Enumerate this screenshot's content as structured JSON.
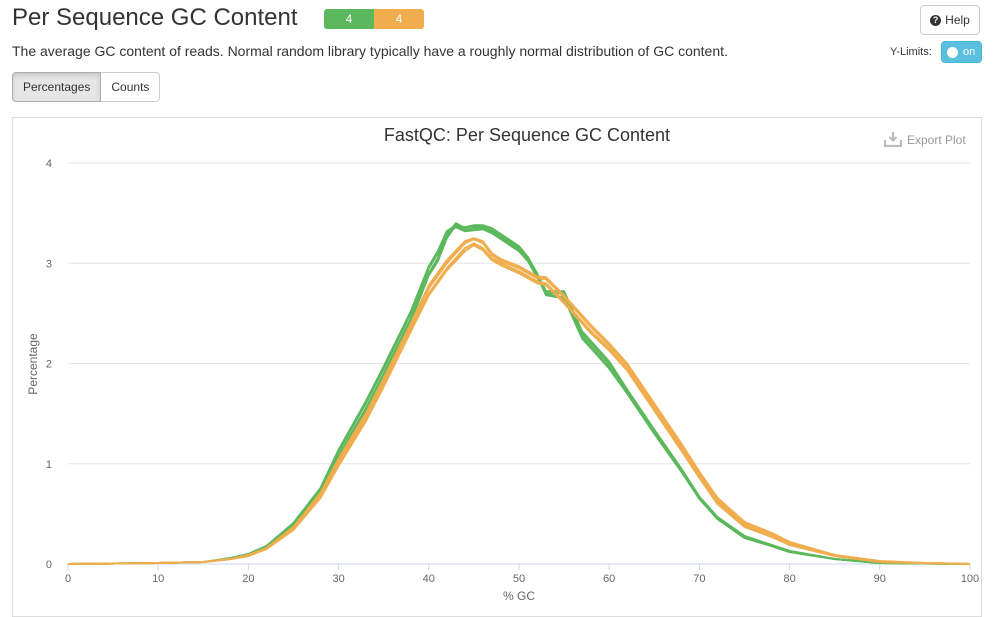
{
  "header": {
    "title": "Per Sequence GC Content",
    "badges": [
      {
        "label": "4",
        "status": "pass",
        "color": "#5cb85c"
      },
      {
        "label": "4",
        "status": "warn",
        "color": "#f0ad4e"
      }
    ],
    "help_label": "Help",
    "description": "The average GC content of reads. Normal random library typically have a roughly normal distribution of GC content."
  },
  "controls": {
    "ylimits_label": "Y-Limits:",
    "ylimits_state": "on",
    "tabs": [
      {
        "label": "Percentages",
        "active": true
      },
      {
        "label": "Counts",
        "active": false
      }
    ],
    "export_label": "Export Plot"
  },
  "chart_data": {
    "type": "line",
    "title": "FastQC: Per Sequence GC Content",
    "xlabel": "% GC",
    "ylabel": "Percentage",
    "xlim": [
      0,
      100
    ],
    "ylim": [
      0,
      4
    ],
    "xticks": [
      0,
      10,
      20,
      30,
      40,
      50,
      60,
      70,
      80,
      90,
      100
    ],
    "yticks": [
      0,
      1,
      2,
      3,
      4
    ],
    "grid": true,
    "series": [
      {
        "color": "#5cb85c",
        "x": [
          0,
          10,
          15,
          18,
          20,
          22,
          25,
          28,
          30,
          33,
          35,
          38,
          40,
          41,
          42,
          43,
          44,
          45,
          46,
          47,
          48,
          50,
          51,
          52,
          53,
          55,
          57,
          58,
          60,
          62,
          65,
          68,
          70,
          72,
          75,
          78,
          80,
          85,
          90,
          95,
          100
        ],
        "y": [
          0,
          0.01,
          0.02,
          0.05,
          0.09,
          0.17,
          0.38,
          0.72,
          1.08,
          1.55,
          1.9,
          2.45,
          2.9,
          3.05,
          3.28,
          3.4,
          3.35,
          3.37,
          3.37,
          3.34,
          3.28,
          3.15,
          3.05,
          2.88,
          2.68,
          2.65,
          2.25,
          2.15,
          1.95,
          1.7,
          1.3,
          0.92,
          0.65,
          0.45,
          0.26,
          0.18,
          0.12,
          0.05,
          0.01,
          0.005,
          0
        ]
      },
      {
        "color": "#5cb85c",
        "x": [
          0,
          10,
          15,
          18,
          20,
          22,
          25,
          28,
          30,
          33,
          35,
          38,
          40,
          41,
          42,
          43,
          44,
          45,
          46,
          47,
          48,
          50,
          51,
          52,
          53,
          55,
          57,
          58,
          60,
          62,
          65,
          68,
          70,
          72,
          75,
          78,
          80,
          85,
          90,
          95,
          100
        ],
        "y": [
          0,
          0.01,
          0.02,
          0.05,
          0.1,
          0.18,
          0.4,
          0.75,
          1.12,
          1.6,
          1.95,
          2.5,
          2.95,
          3.1,
          3.3,
          3.36,
          3.32,
          3.33,
          3.34,
          3.3,
          3.24,
          3.12,
          3.02,
          2.86,
          2.7,
          2.7,
          2.3,
          2.2,
          2.0,
          1.72,
          1.32,
          0.94,
          0.66,
          0.46,
          0.27,
          0.19,
          0.13,
          0.05,
          0.01,
          0.005,
          0
        ]
      },
      {
        "color": "#5cb85c",
        "x": [
          0,
          10,
          15,
          18,
          20,
          22,
          25,
          28,
          30,
          33,
          35,
          38,
          40,
          41,
          42,
          43,
          44,
          45,
          46,
          47,
          48,
          50,
          51,
          52,
          53,
          55,
          57,
          58,
          60,
          62,
          65,
          68,
          70,
          72,
          75,
          78,
          80,
          85,
          90,
          95,
          100
        ],
        "y": [
          0,
          0.01,
          0.02,
          0.05,
          0.09,
          0.16,
          0.37,
          0.7,
          1.05,
          1.52,
          1.87,
          2.42,
          2.88,
          3.02,
          3.25,
          3.38,
          3.33,
          3.35,
          3.36,
          3.32,
          3.26,
          3.14,
          3.04,
          2.87,
          2.69,
          2.66,
          2.27,
          2.17,
          1.97,
          1.71,
          1.31,
          0.93,
          0.65,
          0.45,
          0.26,
          0.18,
          0.12,
          0.05,
          0.01,
          0.005,
          0
        ]
      },
      {
        "color": "#5cb85c",
        "x": [
          0,
          10,
          15,
          18,
          20,
          22,
          25,
          28,
          30,
          33,
          35,
          38,
          40,
          41,
          42,
          43,
          44,
          45,
          46,
          47,
          48,
          50,
          51,
          52,
          53,
          55,
          57,
          58,
          60,
          62,
          65,
          68,
          70,
          72,
          75,
          78,
          80,
          85,
          90,
          95,
          100
        ],
        "y": [
          0,
          0.01,
          0.02,
          0.06,
          0.1,
          0.18,
          0.41,
          0.76,
          1.14,
          1.62,
          1.97,
          2.52,
          2.97,
          3.12,
          3.32,
          3.38,
          3.36,
          3.38,
          3.38,
          3.35,
          3.29,
          3.17,
          3.06,
          2.9,
          2.72,
          2.72,
          2.32,
          2.22,
          2.02,
          1.74,
          1.34,
          0.95,
          0.67,
          0.47,
          0.28,
          0.19,
          0.13,
          0.05,
          0.01,
          0.005,
          0
        ]
      },
      {
        "color": "#f0ad4e",
        "x": [
          0,
          10,
          15,
          18,
          20,
          22,
          25,
          28,
          30,
          33,
          35,
          38,
          40,
          42,
          44,
          45,
          46,
          47,
          48,
          50,
          52,
          53,
          55,
          56,
          58,
          60,
          62,
          65,
          68,
          70,
          72,
          75,
          78,
          80,
          85,
          90,
          95,
          100
        ],
        "y": [
          0,
          0.01,
          0.02,
          0.05,
          0.08,
          0.15,
          0.35,
          0.68,
          1.0,
          1.45,
          1.8,
          2.35,
          2.7,
          2.95,
          3.15,
          3.2,
          3.15,
          3.05,
          3.0,
          2.92,
          2.82,
          2.8,
          2.62,
          2.52,
          2.32,
          2.15,
          1.95,
          1.55,
          1.15,
          0.88,
          0.62,
          0.38,
          0.28,
          0.2,
          0.08,
          0.02,
          0.01,
          0
        ]
      },
      {
        "color": "#f0ad4e",
        "x": [
          0,
          10,
          15,
          18,
          20,
          22,
          25,
          28,
          30,
          33,
          35,
          38,
          40,
          42,
          44,
          45,
          46,
          47,
          48,
          50,
          52,
          53,
          55,
          56,
          58,
          60,
          62,
          65,
          68,
          70,
          72,
          75,
          78,
          80,
          85,
          90,
          95,
          100
        ],
        "y": [
          0,
          0.01,
          0.02,
          0.05,
          0.08,
          0.16,
          0.36,
          0.7,
          1.03,
          1.48,
          1.83,
          2.38,
          2.75,
          3.0,
          3.2,
          3.24,
          3.2,
          3.08,
          3.02,
          2.95,
          2.85,
          2.84,
          2.66,
          2.56,
          2.36,
          2.18,
          1.98,
          1.58,
          1.18,
          0.9,
          0.64,
          0.4,
          0.3,
          0.21,
          0.09,
          0.02,
          0.01,
          0
        ]
      },
      {
        "color": "#f0ad4e",
        "x": [
          0,
          10,
          15,
          18,
          20,
          22,
          25,
          28,
          30,
          33,
          35,
          38,
          40,
          42,
          44,
          45,
          46,
          47,
          48,
          50,
          52,
          53,
          55,
          56,
          58,
          60,
          62,
          65,
          68,
          70,
          72,
          75,
          78,
          80,
          85,
          90,
          95,
          100
        ],
        "y": [
          0,
          0.01,
          0.02,
          0.05,
          0.08,
          0.15,
          0.34,
          0.66,
          0.98,
          1.42,
          1.77,
          2.32,
          2.68,
          2.93,
          3.12,
          3.18,
          3.13,
          3.03,
          2.98,
          2.9,
          2.8,
          2.78,
          2.6,
          2.5,
          2.3,
          2.13,
          1.93,
          1.53,
          1.13,
          0.86,
          0.6,
          0.37,
          0.27,
          0.19,
          0.08,
          0.02,
          0.01,
          0
        ]
      },
      {
        "color": "#f0ad4e",
        "x": [
          0,
          10,
          15,
          18,
          20,
          22,
          25,
          28,
          30,
          33,
          35,
          38,
          40,
          42,
          44,
          45,
          46,
          47,
          48,
          50,
          52,
          53,
          55,
          56,
          58,
          60,
          62,
          65,
          68,
          70,
          72,
          75,
          78,
          80,
          85,
          90,
          95,
          100
        ],
        "y": [
          0,
          0.01,
          0.02,
          0.05,
          0.09,
          0.16,
          0.37,
          0.71,
          1.05,
          1.5,
          1.85,
          2.4,
          2.78,
          3.03,
          3.22,
          3.25,
          3.22,
          3.1,
          3.04,
          2.97,
          2.87,
          2.86,
          2.68,
          2.58,
          2.38,
          2.2,
          2.0,
          1.6,
          1.2,
          0.92,
          0.66,
          0.42,
          0.31,
          0.22,
          0.09,
          0.03,
          0.01,
          0
        ]
      }
    ]
  }
}
